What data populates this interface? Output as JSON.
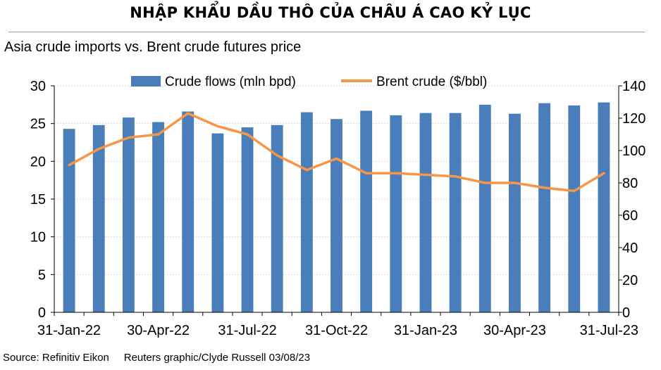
{
  "headline": "NHẬP KHẨU DẦU THÔ CỦA CHÂU Á CAO KỶ LỤC",
  "footer": {
    "source": "Source: Refinitiv Eikon",
    "credit": "Reuters graphic/Clyde Russell 03/08/23"
  },
  "colors": {
    "bars": "#4a7ebb",
    "line": "#f79646"
  },
  "chart_data": {
    "type": "bar",
    "title": "Asia crude imports vs. Brent crude futures price",
    "categories": [
      "Jan-22",
      "Feb-22",
      "Mar-22",
      "Apr-22",
      "May-22",
      "Jun-22",
      "Jul-22",
      "Aug-22",
      "Sep-22",
      "Oct-22",
      "Nov-22",
      "Dec-22",
      "Jan-23",
      "Feb-23",
      "Mar-23",
      "Apr-23",
      "May-23",
      "Jun-23",
      "Jul-23"
    ],
    "x_tick_labels": [
      "31-Jan-22",
      "30-Apr-22",
      "31-Jul-22",
      "31-Oct-22",
      "31-Jan-23",
      "30-Apr-23",
      "31-Jul-23"
    ],
    "series": [
      {
        "name": "Crude flows (mln bpd)",
        "type": "bar",
        "axis": "left",
        "values": [
          24.3,
          24.8,
          25.8,
          25.2,
          26.6,
          23.7,
          24.5,
          24.8,
          26.5,
          25.6,
          26.7,
          26.1,
          26.4,
          26.4,
          27.5,
          26.3,
          27.7,
          27.4,
          27.8
        ]
      },
      {
        "name": "Brent crude ($/bbl)",
        "type": "line",
        "axis": "right",
        "values": [
          91,
          101,
          108,
          110,
          123,
          115,
          110,
          97,
          88,
          95,
          86,
          86,
          85,
          84,
          80,
          80,
          77,
          75,
          86
        ]
      }
    ],
    "ylim_left": [
      0,
      30
    ],
    "yticks_left": [
      0,
      5,
      10,
      15,
      20,
      25,
      30
    ],
    "ylim_right": [
      0,
      140
    ],
    "yticks_right": [
      0,
      20,
      40,
      60,
      80,
      100,
      120,
      140
    ],
    "grid": true,
    "legend": "top-center"
  }
}
